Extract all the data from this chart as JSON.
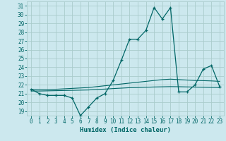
{
  "xlabel": "Humidex (Indice chaleur)",
  "background_color": "#cce8ee",
  "grid_color": "#aacccc",
  "line_color": "#006666",
  "xlim": [
    -0.5,
    23.5
  ],
  "ylim": [
    18.5,
    31.5
  ],
  "yticks": [
    19,
    20,
    21,
    22,
    23,
    24,
    25,
    26,
    27,
    28,
    29,
    30,
    31
  ],
  "xticks": [
    0,
    1,
    2,
    3,
    4,
    5,
    6,
    7,
    8,
    9,
    10,
    11,
    12,
    13,
    14,
    15,
    16,
    17,
    18,
    19,
    20,
    21,
    22,
    23
  ],
  "humidex": [
    21.5,
    21.0,
    20.8,
    20.8,
    20.8,
    20.5,
    18.5,
    19.5,
    20.5,
    21.0,
    22.5,
    24.8,
    27.2,
    27.2,
    28.2,
    30.8,
    29.5,
    30.8,
    21.2,
    21.2,
    22.0,
    23.8,
    24.2,
    21.8
  ],
  "trend1": [
    21.5,
    21.45,
    21.45,
    21.5,
    21.55,
    21.6,
    21.65,
    21.7,
    21.8,
    21.9,
    22.0,
    22.1,
    22.2,
    22.3,
    22.4,
    22.5,
    22.6,
    22.65,
    22.6,
    22.55,
    22.5,
    22.48,
    22.45,
    22.4
  ],
  "trend2": [
    21.3,
    21.3,
    21.32,
    21.34,
    21.36,
    21.38,
    21.4,
    21.42,
    21.48,
    21.52,
    21.58,
    21.63,
    21.68,
    21.7,
    21.73,
    21.76,
    21.78,
    21.8,
    21.79,
    21.77,
    21.75,
    21.73,
    21.71,
    21.7
  ]
}
